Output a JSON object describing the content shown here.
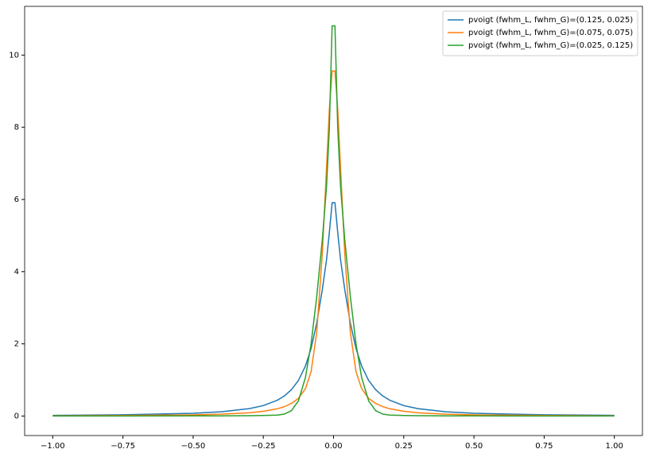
{
  "chart_data": {
    "type": "line",
    "x": [
      -1,
      -0.75,
      -0.5,
      -0.4,
      -0.3,
      -0.25,
      -0.2,
      -0.175,
      -0.15,
      -0.125,
      -0.1,
      -0.08,
      -0.06,
      -0.04,
      -0.025,
      -0.015,
      -0.005,
      0.005,
      0.015,
      0.025,
      0.04,
      0.06,
      0.08,
      0.1,
      0.125,
      0.15,
      0.175,
      0.2,
      0.25,
      0.3,
      0.4,
      0.5,
      0.75,
      1
    ],
    "series": [
      {
        "name": "pvoigt (fwhm_L, fwhm_G)=(0.125, 0.025)",
        "color": "#1f77b4",
        "values": [
          0.019,
          0.034,
          0.076,
          0.118,
          0.205,
          0.29,
          0.439,
          0.558,
          0.73,
          0.987,
          1.387,
          1.871,
          2.569,
          3.5,
          4.33,
          5.08,
          5.91,
          5.91,
          5.08,
          4.33,
          3.5,
          2.569,
          1.871,
          1.387,
          0.987,
          0.73,
          0.558,
          0.439,
          0.29,
          0.205,
          0.118,
          0.076,
          0.034,
          0.019
        ]
      },
      {
        "name": "pvoigt (fwhm_L, fwhm_G)=(0.075, 0.075)",
        "color": "#ff7f0e",
        "values": [
          0.008,
          0.015,
          0.033,
          0.052,
          0.091,
          0.131,
          0.202,
          0.261,
          0.35,
          0.49,
          0.76,
          1.23,
          2.31,
          4.49,
          6.88,
          8.49,
          9.56,
          9.56,
          8.49,
          6.88,
          4.49,
          2.31,
          1.23,
          0.76,
          0.49,
          0.35,
          0.261,
          0.202,
          0.131,
          0.091,
          0.052,
          0.033,
          0.015,
          0.008
        ]
      },
      {
        "name": "pvoigt (fwhm_L, fwhm_G)=(0.025, 0.125)",
        "color": "#2ca02c",
        "values": [
          0.001,
          0.002,
          0.004,
          0.006,
          0.01,
          0.015,
          0.028,
          0.055,
          0.15,
          0.42,
          1.07,
          2.0,
          3.3,
          4.88,
          6.35,
          7.96,
          10.81,
          10.81,
          7.96,
          6.35,
          4.88,
          3.3,
          2.0,
          1.07,
          0.42,
          0.15,
          0.055,
          0.028,
          0.015,
          0.01,
          0.006,
          0.004,
          0.002,
          0.001
        ]
      }
    ],
    "xlim": [
      -1.1,
      1.1
    ],
    "ylim": [
      -0.54,
      11.35
    ],
    "xticks": [
      {
        "value": -1,
        "label": "−1.00"
      },
      {
        "value": -0.75,
        "label": "−0.75"
      },
      {
        "value": -0.5,
        "label": "−0.50"
      },
      {
        "value": -0.25,
        "label": "−0.25"
      },
      {
        "value": 0,
        "label": "0.00"
      },
      {
        "value": 0.25,
        "label": "0.25"
      },
      {
        "value": 0.5,
        "label": "0.50"
      },
      {
        "value": 0.75,
        "label": "0.75"
      },
      {
        "value": 1,
        "label": "1.00"
      }
    ],
    "yticks": [
      0,
      2,
      4,
      6,
      8,
      10
    ],
    "legend": "upper right"
  }
}
